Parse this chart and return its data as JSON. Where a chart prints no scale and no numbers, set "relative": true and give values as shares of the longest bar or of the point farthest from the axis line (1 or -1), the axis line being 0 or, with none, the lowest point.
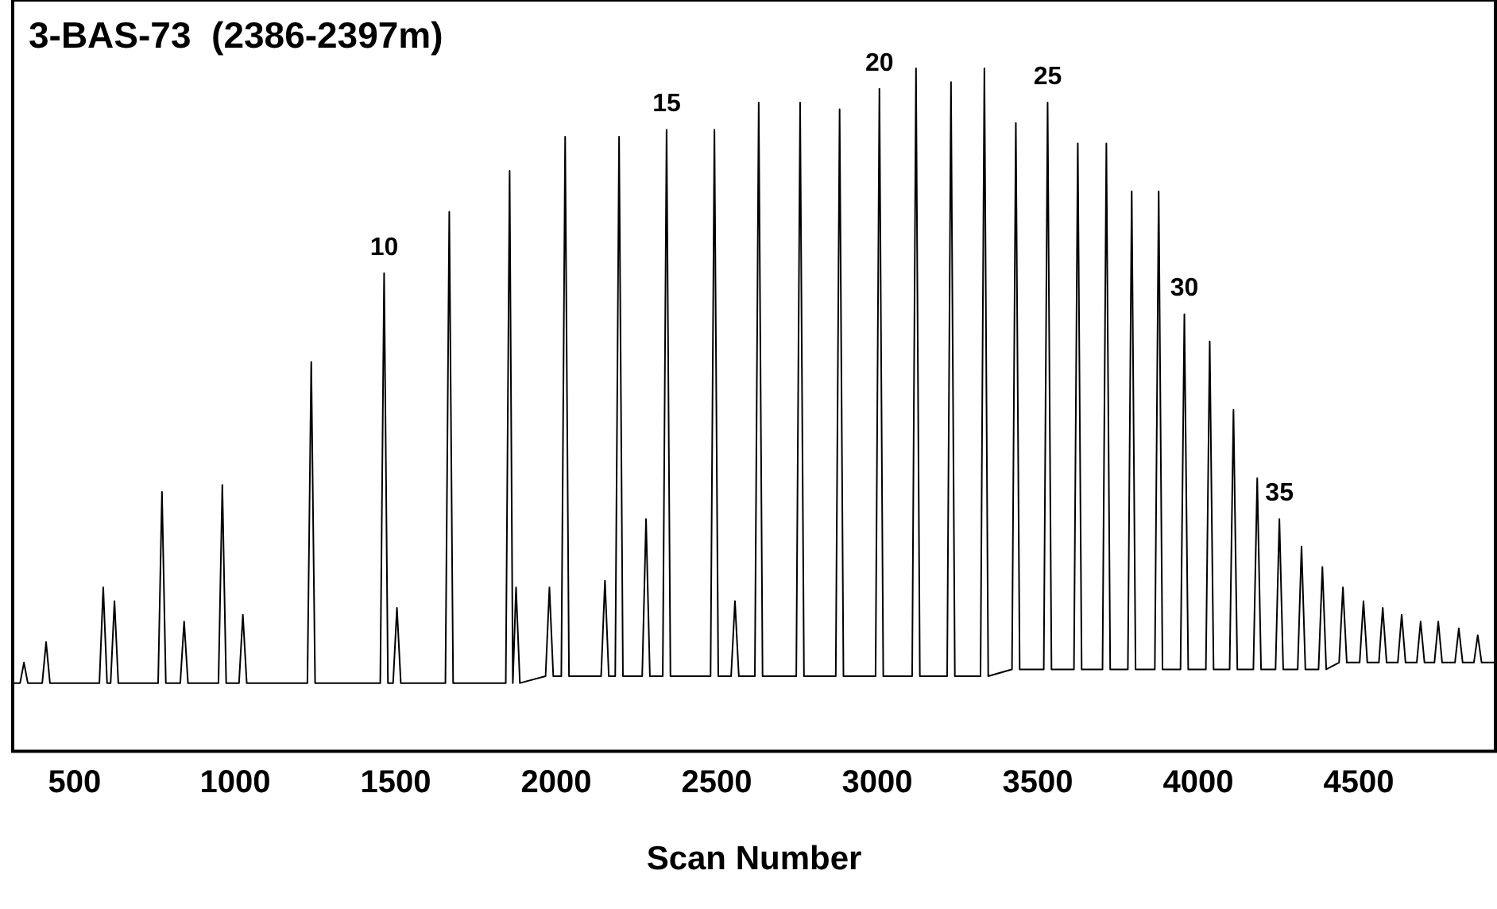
{
  "chart_data": {
    "type": "line",
    "title": "3-BAS-73  (2386-2397m)",
    "xlabel": "Scan Number",
    "relative": true,
    "xlim": [
      307,
      4926
    ],
    "xticks": [
      500,
      1000,
      1500,
      2000,
      2500,
      3000,
      3500,
      4000,
      4500
    ],
    "grid": false,
    "legend": false,
    "marker": "none",
    "line_style": "solid",
    "annotations": [
      {
        "text": "10",
        "x": 1464,
        "y": 0.7
      },
      {
        "text": "15",
        "x": 2344,
        "y": 0.91
      },
      {
        "text": "20",
        "x": 3007,
        "y": 0.97
      },
      {
        "text": "25",
        "x": 3531,
        "y": 0.95
      },
      {
        "text": "30",
        "x": 3957,
        "y": 0.64
      },
      {
        "text": "35",
        "x": 4253,
        "y": 0.34
      }
    ],
    "series": [
      {
        "color": "#000000",
        "x": [
          307,
          330,
          342,
          354,
          399,
          411,
          423,
          577,
          589,
          601,
          612,
          624,
          636,
          760,
          772,
          784,
          829,
          841,
          853,
          948,
          960,
          972,
          1012,
          1024,
          1036,
          1225,
          1237,
          1249,
          1452,
          1464,
          1476,
          1492,
          1504,
          1516,
          1655,
          1667,
          1679,
          1843,
          1855,
          1865,
          1875,
          1887,
          1967,
          1979,
          1991,
          2016,
          2028,
          2040,
          2140,
          2152,
          2164,
          2184,
          2196,
          2208,
          2268,
          2280,
          2292,
          2332,
          2344,
          2356,
          2481,
          2493,
          2505,
          2545,
          2557,
          2569,
          2619,
          2631,
          2643,
          2748,
          2760,
          2772,
          2871,
          2883,
          2895,
          2995,
          3007,
          3019,
          3109,
          3121,
          3133,
          3218,
          3230,
          3242,
          3322,
          3334,
          3346,
          3420,
          3432,
          3444,
          3519,
          3531,
          3543,
          3613,
          3625,
          3637,
          3702,
          3714,
          3726,
          3781,
          3793,
          3805,
          3865,
          3877,
          3889,
          3945,
          3957,
          3969,
          4024,
          4036,
          4048,
          4098,
          4110,
          4122,
          4172,
          4184,
          4196,
          4241,
          4253,
          4265,
          4310,
          4322,
          4334,
          4375,
          4387,
          4399,
          4439,
          4451,
          4463,
          4503,
          4515,
          4527,
          4563,
          4575,
          4587,
          4622,
          4634,
          4646,
          4681,
          4693,
          4705,
          4736,
          4748,
          4760,
          4800,
          4812,
          4824,
          4859,
          4871,
          4883,
          4926
        ],
        "values": [
          0.1,
          0.1,
          0.13,
          0.1,
          0.1,
          0.16,
          0.1,
          0.1,
          0.24,
          0.1,
          0.1,
          0.22,
          0.1,
          0.1,
          0.38,
          0.1,
          0.1,
          0.19,
          0.1,
          0.1,
          0.39,
          0.1,
          0.1,
          0.2,
          0.1,
          0.1,
          0.57,
          0.1,
          0.1,
          0.7,
          0.1,
          0.1,
          0.21,
          0.1,
          0.1,
          0.79,
          0.1,
          0.1,
          0.85,
          0.1,
          0.24,
          0.1,
          0.11,
          0.24,
          0.11,
          0.11,
          0.9,
          0.11,
          0.11,
          0.25,
          0.11,
          0.11,
          0.9,
          0.11,
          0.11,
          0.34,
          0.11,
          0.11,
          0.91,
          0.11,
          0.11,
          0.91,
          0.11,
          0.11,
          0.22,
          0.11,
          0.11,
          0.95,
          0.11,
          0.11,
          0.95,
          0.11,
          0.11,
          0.94,
          0.11,
          0.11,
          0.97,
          0.11,
          0.11,
          1,
          0.11,
          0.11,
          0.98,
          0.11,
          0.11,
          1,
          0.11,
          0.12,
          0.92,
          0.12,
          0.12,
          0.95,
          0.12,
          0.12,
          0.89,
          0.12,
          0.12,
          0.89,
          0.12,
          0.12,
          0.82,
          0.12,
          0.12,
          0.82,
          0.12,
          0.12,
          0.64,
          0.12,
          0.12,
          0.6,
          0.12,
          0.12,
          0.5,
          0.12,
          0.12,
          0.4,
          0.12,
          0.12,
          0.34,
          0.12,
          0.12,
          0.3,
          0.12,
          0.12,
          0.27,
          0.12,
          0.13,
          0.24,
          0.13,
          0.13,
          0.22,
          0.13,
          0.13,
          0.21,
          0.13,
          0.13,
          0.2,
          0.13,
          0.13,
          0.19,
          0.13,
          0.13,
          0.19,
          0.13,
          0.13,
          0.18,
          0.13,
          0.13,
          0.17,
          0.13,
          0.13
        ]
      }
    ]
  }
}
